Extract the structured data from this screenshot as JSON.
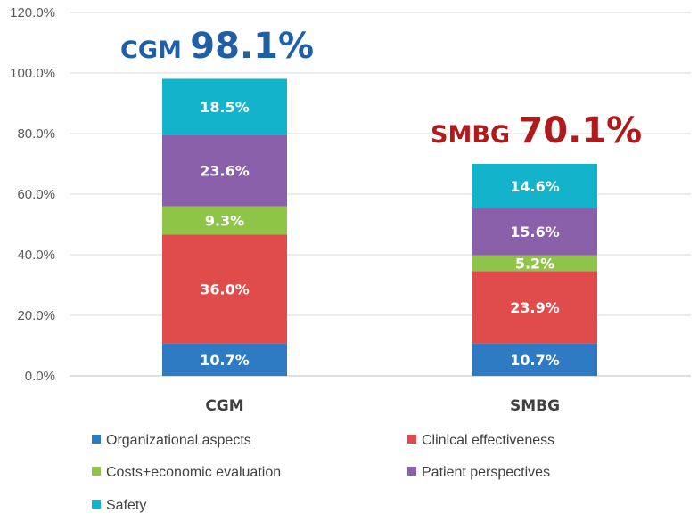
{
  "chart_data": {
    "type": "bar",
    "stacked": true,
    "categories": [
      "CGM",
      "SMBG"
    ],
    "series": [
      {
        "name": "Organizational aspects",
        "color": "#2e7bc4",
        "values": [
          10.7,
          10.7
        ],
        "labels": [
          "10.7%",
          "10.7%"
        ]
      },
      {
        "name": "Clinical effectiveness",
        "color": "#e04b4b",
        "values": [
          36.0,
          23.9
        ],
        "labels": [
          "36.0%",
          "23.9%"
        ]
      },
      {
        "name": "Costs+economic evaluation",
        "color": "#8ec549",
        "values": [
          9.3,
          5.2
        ],
        "labels": [
          "9.3%",
          "5.2%"
        ]
      },
      {
        "name": "Patient perspectives",
        "color": "#8b60ab",
        "values": [
          23.6,
          15.6
        ],
        "labels": [
          "23.6%",
          "15.6%"
        ]
      },
      {
        "name": "Safety",
        "color": "#14b3cc",
        "values": [
          18.5,
          14.6
        ],
        "labels": [
          "18.5%",
          "14.6%"
        ]
      }
    ],
    "totals": [
      {
        "category": "CGM",
        "value": 98.1,
        "label": "98.1%",
        "color": "#1f5fa8"
      },
      {
        "category": "SMBG",
        "value": 70.1,
        "label": "70.1%",
        "color": "#b01a1a"
      }
    ],
    "ylim": [
      0,
      120
    ],
    "yticks": [
      "0.0%",
      "20.0%",
      "40.0%",
      "60.0%",
      "80.0%",
      "100.0%",
      "120.0%"
    ],
    "grid": true,
    "legend_position": "bottom"
  }
}
